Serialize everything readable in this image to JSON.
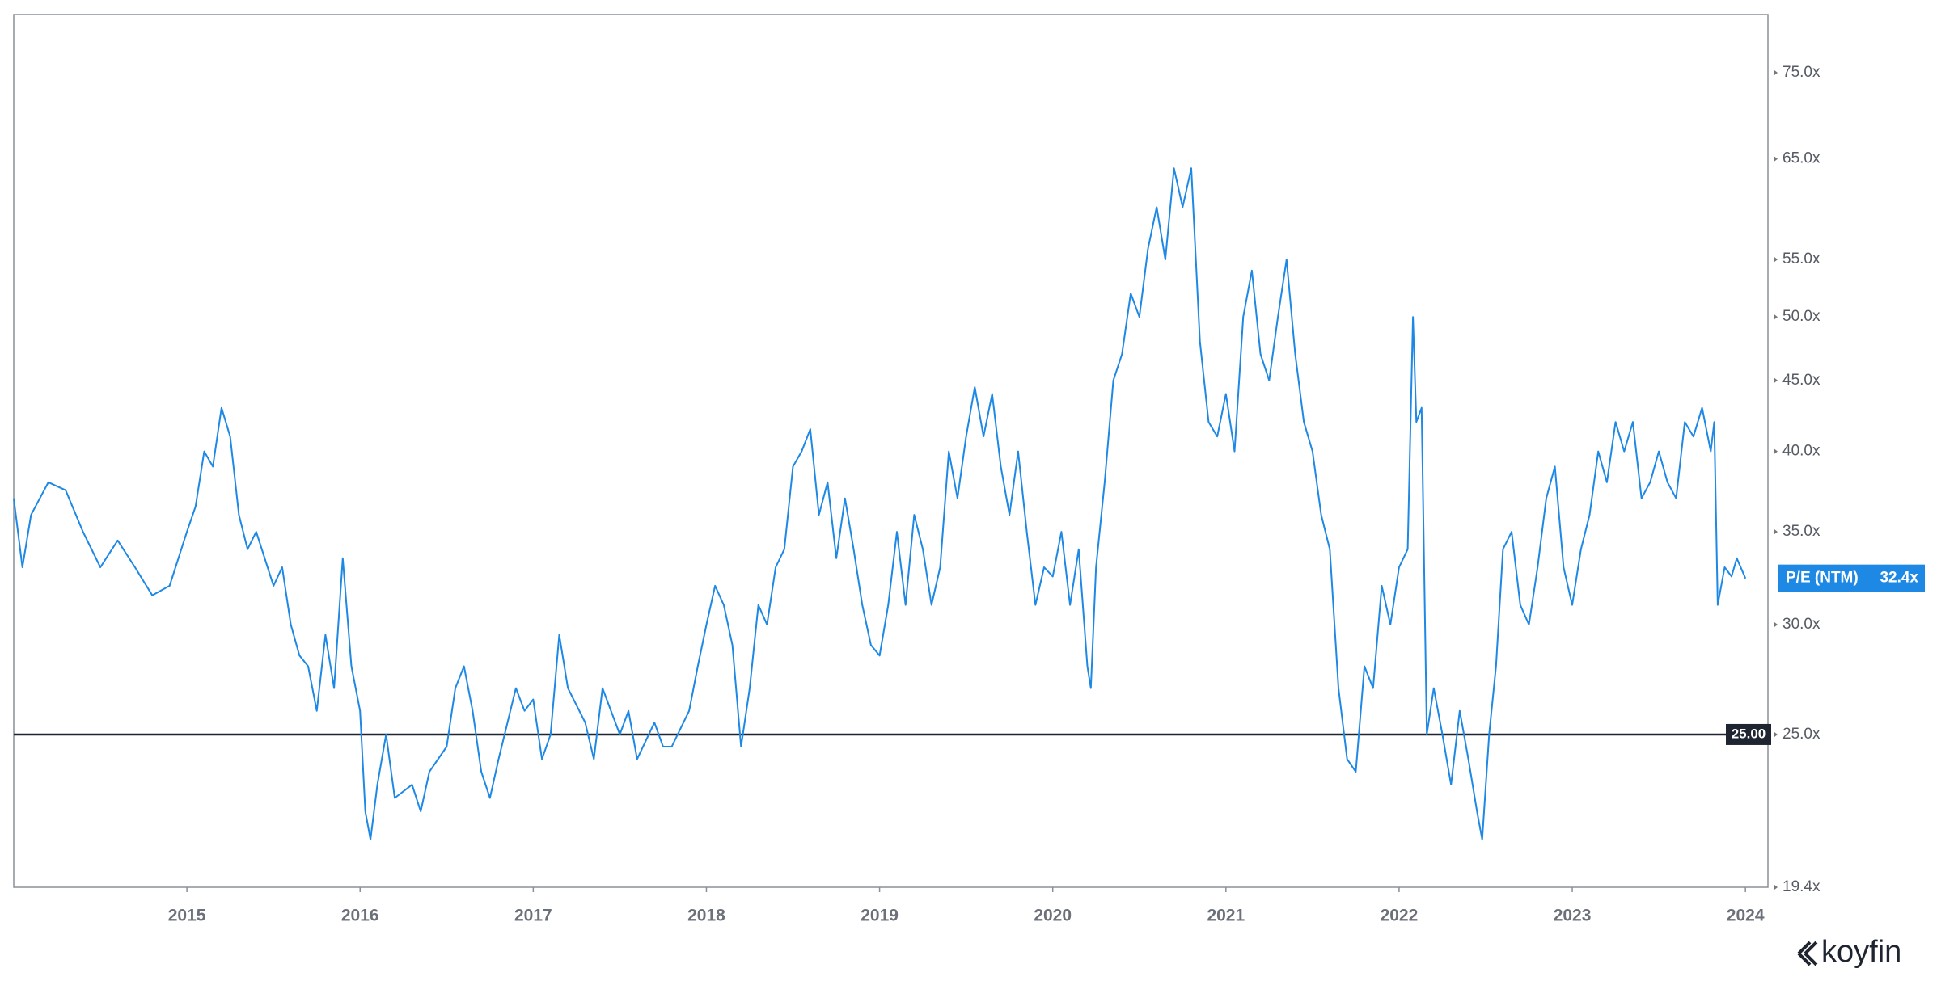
{
  "chart_data": {
    "type": "line",
    "log_y": true,
    "grid": false,
    "brand": "koyfin",
    "xlim": [
      2014.0,
      2024.13
    ],
    "xticks": [
      2015,
      2016,
      2017,
      2018,
      2019,
      2020,
      2021,
      2022,
      2023,
      2024
    ],
    "ylim": [
      19.4,
      82.6
    ],
    "yticks": [
      {
        "value": 19.4,
        "label": "19.4x"
      },
      {
        "value": 25,
        "label": "25.0x"
      },
      {
        "value": 30,
        "label": "30.0x"
      },
      {
        "value": 35,
        "label": "35.0x"
      },
      {
        "value": 40,
        "label": "40.0x"
      },
      {
        "value": 45,
        "label": "45.0x"
      },
      {
        "value": 50,
        "label": "50.0x"
      },
      {
        "value": 55,
        "label": "55.0x"
      },
      {
        "value": 65,
        "label": "65.0x"
      },
      {
        "value": 75,
        "label": "75.0x"
      }
    ],
    "hline": {
      "value": 25,
      "label": "25.00",
      "color": "#1f2530"
    },
    "x": [
      2014.0,
      2014.05,
      2014.1,
      2014.2,
      2014.3,
      2014.4,
      2014.5,
      2014.6,
      2014.7,
      2014.8,
      2014.9,
      2015.0,
      2015.05,
      2015.1,
      2015.15,
      2015.2,
      2015.25,
      2015.3,
      2015.35,
      2015.4,
      2015.5,
      2015.55,
      2015.6,
      2015.65,
      2015.7,
      2015.75,
      2015.8,
      2015.85,
      2015.9,
      2015.95,
      2016.0,
      2016.03,
      2016.06,
      2016.1,
      2016.15,
      2016.2,
      2016.3,
      2016.35,
      2016.4,
      2016.5,
      2016.55,
      2016.6,
      2016.65,
      2016.7,
      2016.75,
      2016.8,
      2016.9,
      2016.95,
      2017.0,
      2017.05,
      2017.1,
      2017.15,
      2017.2,
      2017.3,
      2017.35,
      2017.4,
      2017.5,
      2017.55,
      2017.6,
      2017.7,
      2017.75,
      2017.8,
      2017.9,
      2017.95,
      2018.0,
      2018.05,
      2018.1,
      2018.15,
      2018.2,
      2018.25,
      2018.3,
      2018.35,
      2018.4,
      2018.45,
      2018.5,
      2018.55,
      2018.6,
      2018.65,
      2018.7,
      2018.75,
      2018.8,
      2018.85,
      2018.9,
      2018.95,
      2019.0,
      2019.05,
      2019.1,
      2019.15,
      2019.2,
      2019.25,
      2019.3,
      2019.35,
      2019.4,
      2019.45,
      2019.5,
      2019.55,
      2019.6,
      2019.65,
      2019.7,
      2019.75,
      2019.8,
      2019.85,
      2019.9,
      2019.95,
      2020.0,
      2020.05,
      2020.1,
      2020.15,
      2020.2,
      2020.22,
      2020.25,
      2020.3,
      2020.35,
      2020.4,
      2020.45,
      2020.5,
      2020.55,
      2020.6,
      2020.65,
      2020.7,
      2020.75,
      2020.8,
      2020.85,
      2020.9,
      2020.95,
      2021.0,
      2021.05,
      2021.1,
      2021.15,
      2021.2,
      2021.25,
      2021.3,
      2021.35,
      2021.4,
      2021.45,
      2021.5,
      2021.55,
      2021.6,
      2021.65,
      2021.7,
      2021.75,
      2021.8,
      2021.85,
      2021.9,
      2021.95,
      2022.0,
      2022.05,
      2022.08,
      2022.1,
      2022.13,
      2022.16,
      2022.2,
      2022.25,
      2022.3,
      2022.35,
      2022.4,
      2022.45,
      2022.48,
      2022.52,
      2022.56,
      2022.6,
      2022.65,
      2022.7,
      2022.75,
      2022.8,
      2022.85,
      2022.9,
      2022.95,
      2023.0,
      2023.05,
      2023.1,
      2023.15,
      2023.2,
      2023.25,
      2023.3,
      2023.35,
      2023.4,
      2023.45,
      2023.5,
      2023.55,
      2023.6,
      2023.65,
      2023.7,
      2023.75,
      2023.8,
      2023.82,
      2023.84,
      2023.88,
      2023.92,
      2023.95,
      2024.0
    ],
    "series": [
      {
        "name": "P/E (NTM)",
        "color": "#1e88e5",
        "value_label": "32.4x",
        "values": [
          37,
          33,
          36,
          38,
          37.5,
          35,
          33,
          34.5,
          33,
          31.5,
          32,
          35,
          36.5,
          40,
          39,
          43,
          41,
          36,
          34,
          35,
          32,
          33,
          30,
          28.5,
          28,
          26,
          29.5,
          27,
          33.5,
          28,
          26,
          22,
          21,
          23,
          25,
          22.5,
          23,
          22,
          23.5,
          24.5,
          27,
          28,
          26,
          23.5,
          22.5,
          24,
          27,
          26,
          26.5,
          24,
          25,
          29.5,
          27,
          25.5,
          24,
          27,
          25,
          26,
          24,
          25.5,
          24.5,
          24.5,
          26,
          28,
          30,
          32,
          31,
          29,
          24.5,
          27,
          31,
          30,
          33,
          34,
          39,
          40,
          41.5,
          36,
          38,
          33.5,
          37,
          34,
          31,
          29,
          28.5,
          31,
          35,
          31,
          36,
          34,
          31,
          33,
          40,
          37,
          41,
          44.5,
          41,
          44,
          39,
          36,
          40,
          35,
          31,
          33,
          32.5,
          35,
          31,
          34,
          28,
          27,
          33,
          38,
          45,
          47,
          52,
          50,
          56,
          60,
          55,
          64,
          60,
          64,
          48,
          42,
          41,
          44,
          40,
          50,
          54,
          47,
          45,
          50,
          55,
          47,
          42,
          40,
          36,
          34,
          27,
          24,
          23.5,
          28,
          27,
          32,
          30,
          33,
          34,
          50,
          42,
          43,
          25,
          27,
          25,
          23,
          26,
          24,
          22,
          21,
          25,
          28,
          34,
          35,
          31,
          30,
          33,
          37,
          39,
          33,
          31,
          34,
          36,
          40,
          38,
          42,
          40,
          42,
          37,
          38,
          40,
          38,
          37,
          42,
          41,
          43,
          40,
          42,
          31,
          33,
          32.5,
          33.5,
          32.4
        ]
      }
    ]
  }
}
